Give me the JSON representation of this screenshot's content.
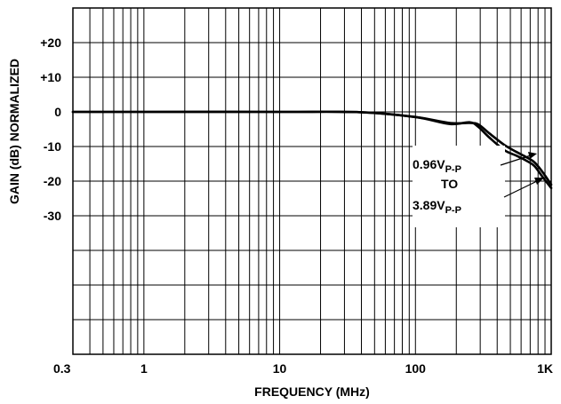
{
  "chart_data": {
    "type": "line",
    "title": "",
    "xlabel": "FREQUENCY (MHz)",
    "ylabel": "GAIN (dB) NORMALIZED",
    "x_scale": "log",
    "xlim": [
      0.3,
      1000
    ],
    "ylim": [
      -70,
      30
    ],
    "grid": true,
    "x_tick_labels": [
      {
        "value": 0.3,
        "label": "0.3"
      },
      {
        "value": 1,
        "label": "1"
      },
      {
        "value": 10,
        "label": "10"
      },
      {
        "value": 100,
        "label": "100"
      },
      {
        "value": 1000,
        "label": "1K"
      }
    ],
    "y_tick_labels": [
      {
        "value": 20,
        "label": "+20"
      },
      {
        "value": 10,
        "label": "+10"
      },
      {
        "value": 0,
        "label": "0"
      },
      {
        "value": -10,
        "label": "-10"
      },
      {
        "value": -20,
        "label": "-20"
      },
      {
        "value": -30,
        "label": "-30"
      }
    ],
    "series": [
      {
        "x": [
          0.3,
          1,
          10,
          40,
          100,
          180,
          250,
          290,
          350,
          450,
          550,
          650,
          750,
          850,
          1000
        ],
        "values": [
          0,
          0,
          0,
          -0.1,
          -1.5,
          -3.2,
          -3.2,
          -3.6,
          -6.2,
          -9.5,
          -11.5,
          -13.0,
          -14.5,
          -17.0,
          -21.0
        ]
      },
      {
        "x": [
          0.3,
          1,
          10,
          40,
          100,
          180,
          250,
          290,
          350,
          450,
          550,
          650,
          750,
          850,
          1000
        ],
        "values": [
          0,
          0,
          0,
          -0.1,
          -1.5,
          -3.5,
          -3.0,
          -4.3,
          -7.4,
          -11.0,
          -12.6,
          -14.0,
          -15.6,
          -18.4,
          -22.0
        ]
      }
    ],
    "annotation": {
      "line1": "0.96V",
      "line1_sub": "P-P",
      "line2": "TO",
      "line3": "3.89V",
      "line3_sub": "P-P"
    }
  }
}
